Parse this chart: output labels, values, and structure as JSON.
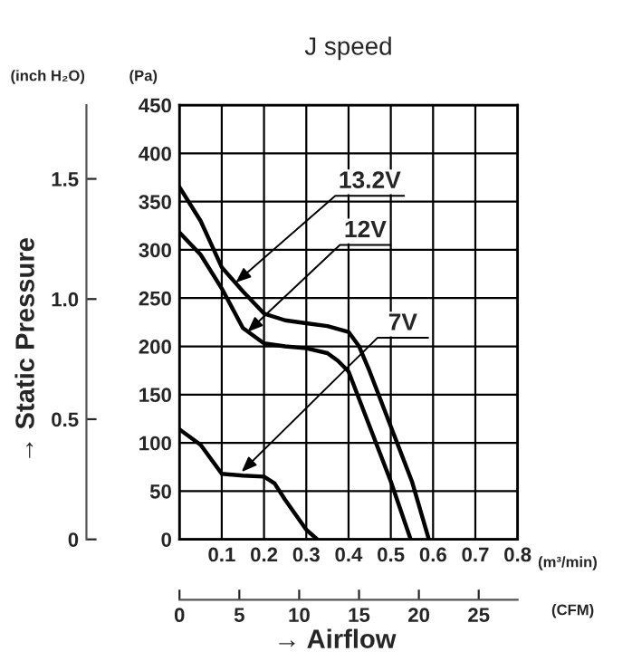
{
  "chart_data": {
    "type": "line",
    "title": "J speed",
    "xlabel": "(m³/min)",
    "ylabel": "(Pa)",
    "y2label": "(inch H₂O)",
    "x2label": "(CFM)",
    "xlim": [
      0,
      0.8
    ],
    "xticks": [
      {
        "value": 0,
        "label": null
      },
      0.1,
      0.2,
      0.3,
      0.4,
      0.5,
      0.6,
      0.7,
      0.8
    ],
    "ylim": [
      0,
      450
    ],
    "yticks": [
      0,
      50,
      100,
      150,
      200,
      250,
      300,
      350,
      400,
      450
    ],
    "y2lim": [
      0,
      1.807
    ],
    "y2ticks": [
      0,
      0.5,
      {
        "value": 1.0,
        "label": "1.0"
      },
      1.5
    ],
    "x2lim": [
      0,
      28.25
    ],
    "x2ticks": [
      0,
      5,
      10,
      15,
      20,
      25
    ],
    "grid": true,
    "marker": "none",
    "line_style": "solid",
    "series": [
      {
        "color": "#000000",
        "x": [
          0,
          0.05,
          0.1,
          0.15,
          0.2,
          0.25,
          0.3,
          0.35,
          0.4,
          0.425,
          0.45,
          0.5,
          0.55,
          0.59
        ],
        "values": [
          365,
          330,
          282,
          257,
          234,
          227,
          224,
          221,
          215,
          200,
          174,
          117,
          60,
          0
        ]
      },
      {
        "color": "#000000",
        "x": [
          0,
          0.05,
          0.1,
          0.15,
          0.2,
          0.25,
          0.3,
          0.35,
          0.375,
          0.4,
          0.45,
          0.5,
          0.547
        ],
        "values": [
          318,
          295,
          260,
          219,
          203,
          200,
          198,
          193,
          185,
          174,
          117,
          60,
          0
        ]
      },
      {
        "color": "#000000",
        "x": [
          0,
          0.05,
          0.1,
          0.15,
          0.2,
          0.225,
          0.25,
          0.3,
          0.326
        ],
        "values": [
          114,
          98,
          68,
          66,
          65,
          58,
          41,
          10,
          0
        ]
      }
    ],
    "annotations": [
      {
        "text": "13.2V",
        "x": 0.133,
        "y": 266
      },
      {
        "text": "12V",
        "x": 0.161,
        "y": 215
      },
      {
        "text": "7V",
        "x": 0.147,
        "y": 70
      },
      "→ Static Pressure",
      "→ Airflow"
    ]
  }
}
